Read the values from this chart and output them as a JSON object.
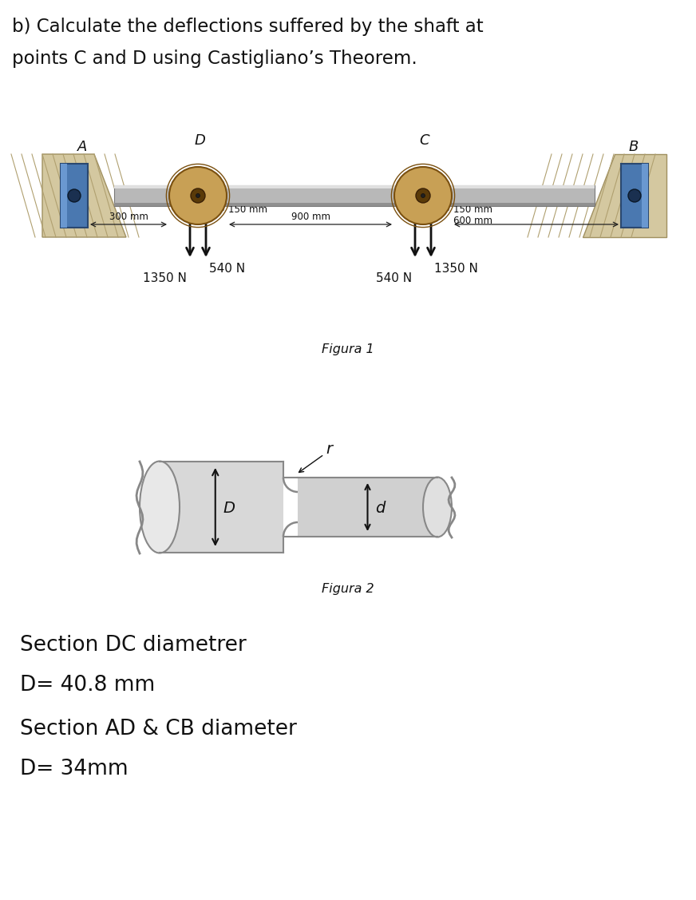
{
  "title_line1": "b) Calculate the deflections suffered by the shaft at",
  "title_line2": "points C and D using Castigliano’s Theorem.",
  "fig1_label": "Figura 1",
  "fig2_label": "Figura 2",
  "dim_300": "300 mm",
  "dim_150_left": "150 mm",
  "dim_900": "900 mm",
  "dim_150_right": "150 mm",
  "dim_600": "600 mm",
  "force_1350_left": "1350 N",
  "force_540_left": "540 N",
  "force_540_right": "540 N",
  "force_1350_right": "1350 N",
  "fig2_D_label": "D",
  "fig2_d_label": "d",
  "fig2_r_label": "r",
  "section_dc_title": "Section DC diametrer",
  "section_dc_value": "D= 40.8 mm",
  "section_adcb_title": "Section AD & CB diameter",
  "section_adcb_value": "D= 34mm",
  "bg_color": "#ffffff"
}
